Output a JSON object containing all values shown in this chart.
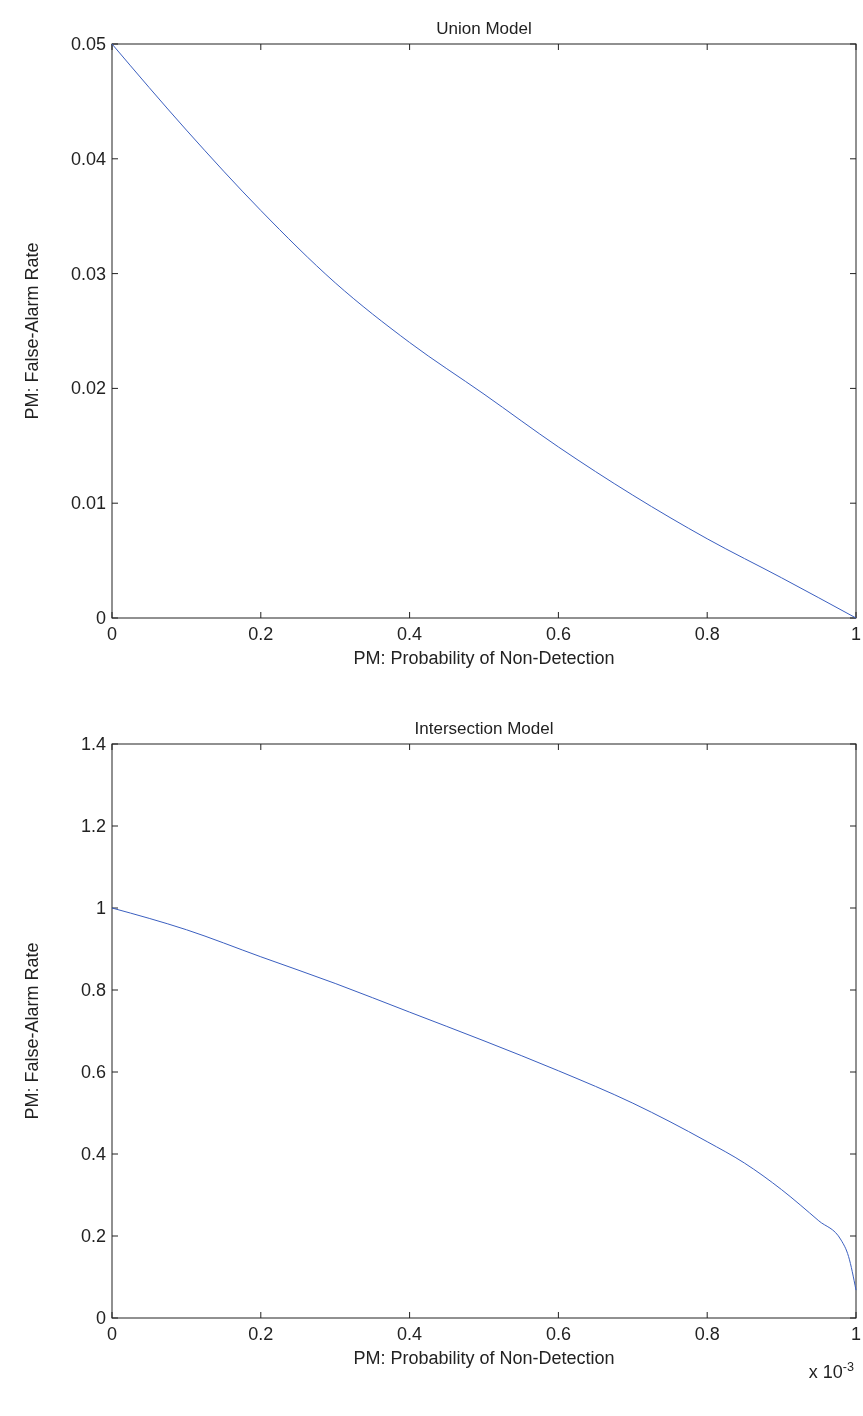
{
  "chart_data": [
    {
      "type": "line",
      "title": "Union Model",
      "xlabel": "PM: Probability of Non-Detection",
      "ylabel": "PM: False-Alarm Rate",
      "xlim": [
        0,
        1
      ],
      "ylim": [
        0,
        0.05
      ],
      "xticks": [
        0,
        0.2,
        0.4,
        0.6,
        0.8,
        1
      ],
      "yticks": [
        0,
        0.01,
        0.02,
        0.03,
        0.04,
        0.05
      ],
      "grid": false,
      "series": [
        {
          "color": "#3b5fc0",
          "x": [
            0,
            0.1,
            0.2,
            0.3,
            0.4,
            0.5,
            0.6,
            0.7,
            0.8,
            0.9,
            1
          ],
          "values": [
            0.05,
            0.0425,
            0.0355,
            0.0292,
            0.024,
            0.0195,
            0.0149,
            0.0107,
            0.0069,
            0.0035,
            0
          ]
        }
      ]
    },
    {
      "type": "line",
      "title": "Intersection Model",
      "xlabel": "PM: Probability of Non-Detection",
      "ylabel": "PM: False-Alarm Rate",
      "annotations": [
        "x 10$^{-3}$"
      ],
      "xlim": [
        0,
        1
      ],
      "ylim": [
        0,
        1.4
      ],
      "xticks": [
        0,
        0.2,
        0.4,
        0.6,
        0.8,
        1
      ],
      "yticks": [
        0,
        0.2,
        0.4,
        0.6,
        0.8,
        1,
        1.2,
        1.4
      ],
      "grid": false,
      "series": [
        {
          "color": "#3b5fc0",
          "x": [
            0,
            0.1,
            0.2,
            0.3,
            0.4,
            0.5,
            0.6,
            0.7,
            0.8,
            0.85,
            0.9,
            0.95,
            0.98,
            0.99,
            1
          ],
          "values": [
            1,
            0.947,
            0.881,
            0.816,
            0.746,
            0.676,
            0.603,
            0.524,
            0.43,
            0.378,
            0.313,
            0.237,
            0.19,
            0.15,
            0.068
          ]
        }
      ]
    }
  ]
}
